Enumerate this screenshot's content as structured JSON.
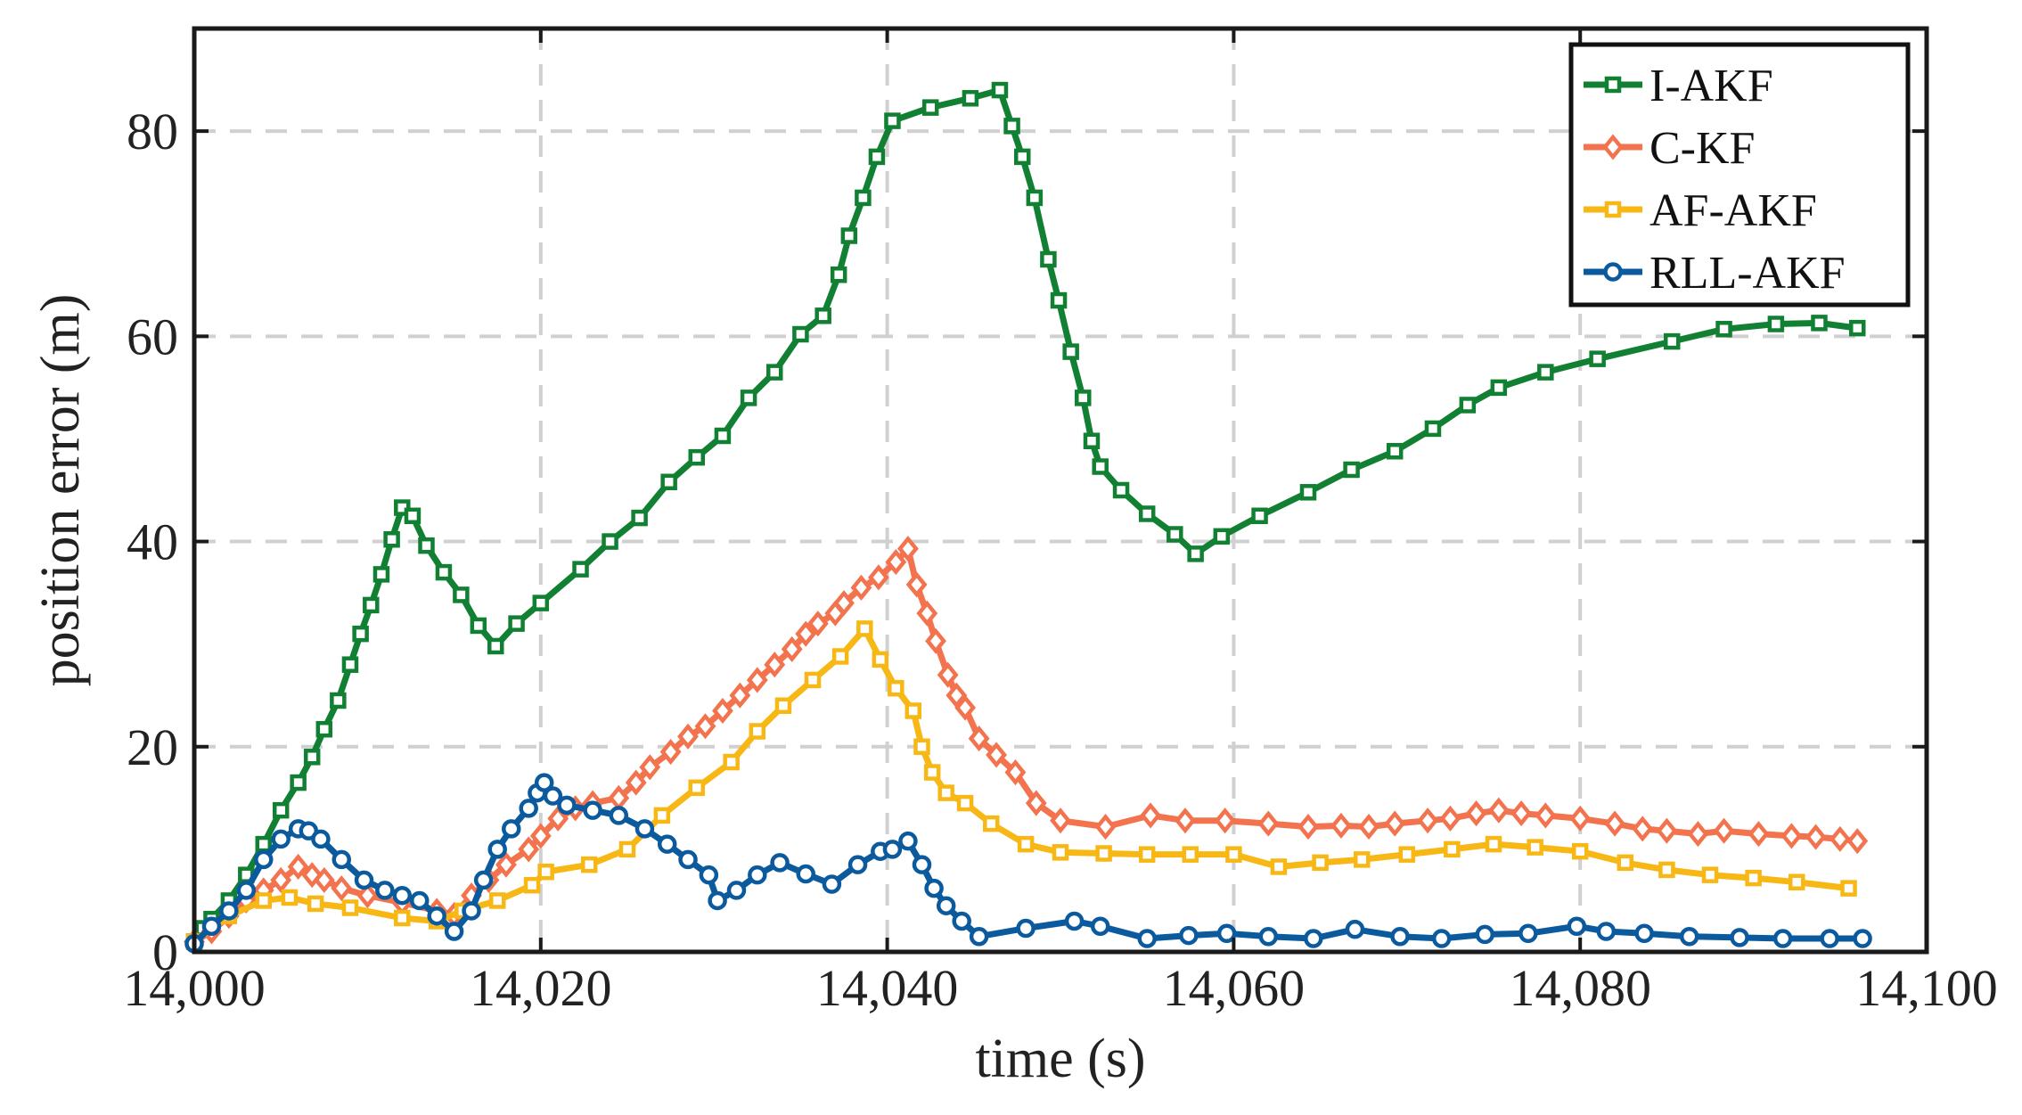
{
  "chart_data": {
    "type": "line",
    "xlabel": "time (s)",
    "ylabel": "position error (m)",
    "xlim": [
      14000,
      14100
    ],
    "ylim": [
      0,
      90
    ],
    "xticks": [
      14000,
      14020,
      14040,
      14060,
      14080,
      14100
    ],
    "xtick_labels": [
      "14,000",
      "14,020",
      "14,040",
      "14,060",
      "14,080",
      "14,100"
    ],
    "yticks": [
      0,
      20,
      40,
      60,
      80
    ],
    "ytick_labels": [
      "0",
      "20",
      "40",
      "60",
      "80"
    ],
    "grid": true,
    "legend_position": "top-right",
    "series": [
      {
        "name": "I-AKF",
        "color": "#118033",
        "marker": "square",
        "points": [
          [
            14000,
            1
          ],
          [
            14000.5,
            2.3
          ],
          [
            14001,
            3.2
          ],
          [
            14002,
            5
          ],
          [
            14003,
            7.5
          ],
          [
            14004,
            10.5
          ],
          [
            14005,
            13.8
          ],
          [
            14006,
            16.5
          ],
          [
            14006.8,
            19
          ],
          [
            14007.5,
            21.7
          ],
          [
            14008.3,
            24.5
          ],
          [
            14009,
            28
          ],
          [
            14009.6,
            31
          ],
          [
            14010.2,
            33.8
          ],
          [
            14010.8,
            36.8
          ],
          [
            14011.4,
            40.2
          ],
          [
            14012,
            43.3
          ],
          [
            14012.6,
            42.5
          ],
          [
            14013.4,
            39.6
          ],
          [
            14014.4,
            37
          ],
          [
            14015.4,
            34.8
          ],
          [
            14016.4,
            31.8
          ],
          [
            14017.4,
            29.8
          ],
          [
            14018.6,
            32
          ],
          [
            14020,
            34
          ],
          [
            14022.3,
            37.3
          ],
          [
            14024,
            40
          ],
          [
            14025.7,
            42.3
          ],
          [
            14027.4,
            45.8
          ],
          [
            14029,
            48.2
          ],
          [
            14030.5,
            50.3
          ],
          [
            14032,
            54
          ],
          [
            14033.5,
            56.5
          ],
          [
            14035,
            60.2
          ],
          [
            14036.3,
            62
          ],
          [
            14037.2,
            66
          ],
          [
            14037.8,
            69.8
          ],
          [
            14038.6,
            73.5
          ],
          [
            14039.4,
            77.5
          ],
          [
            14040.3,
            81
          ],
          [
            14042.5,
            82.3
          ],
          [
            14044.8,
            83.2
          ],
          [
            14046.5,
            84
          ],
          [
            14047.2,
            80.5
          ],
          [
            14047.8,
            77.5
          ],
          [
            14048.5,
            73.5
          ],
          [
            14049.3,
            67.5
          ],
          [
            14049.9,
            63.5
          ],
          [
            14050.6,
            58.5
          ],
          [
            14051.3,
            54
          ],
          [
            14051.8,
            49.8
          ],
          [
            14052.3,
            47.3
          ],
          [
            14053.5,
            45
          ],
          [
            14055,
            42.7
          ],
          [
            14056.6,
            40.7
          ],
          [
            14057.8,
            38.8
          ],
          [
            14059.3,
            40.5
          ],
          [
            14061.5,
            42.5
          ],
          [
            14064.3,
            44.8
          ],
          [
            14066.8,
            47
          ],
          [
            14069.3,
            48.8
          ],
          [
            14071.5,
            51
          ],
          [
            14073.5,
            53.3
          ],
          [
            14075.3,
            55
          ],
          [
            14078,
            56.5
          ],
          [
            14081,
            57.8
          ],
          [
            14085.3,
            59.5
          ],
          [
            14088.3,
            60.7
          ],
          [
            14091.3,
            61.2
          ],
          [
            14093.8,
            61.3
          ],
          [
            14096,
            60.8
          ]
        ]
      },
      {
        "name": "C-KF",
        "color": "#F2734E",
        "marker": "diamond",
        "points": [
          [
            14000,
            1
          ],
          [
            14001,
            2
          ],
          [
            14002,
            3.5
          ],
          [
            14003,
            5
          ],
          [
            14004,
            6
          ],
          [
            14005,
            7
          ],
          [
            14006,
            8.3
          ],
          [
            14006.8,
            7.5
          ],
          [
            14007.5,
            7
          ],
          [
            14008.5,
            6.2
          ],
          [
            14010,
            5.5
          ],
          [
            14012,
            4.8
          ],
          [
            14014,
            4
          ],
          [
            14015,
            3.6
          ],
          [
            14016,
            5.5
          ],
          [
            14017,
            7
          ],
          [
            14018,
            8.5
          ],
          [
            14019.3,
            10
          ],
          [
            14020,
            11.3
          ],
          [
            14021,
            13
          ],
          [
            14022,
            14
          ],
          [
            14023,
            14.5
          ],
          [
            14024.5,
            15
          ],
          [
            14025.5,
            16.5
          ],
          [
            14026.3,
            18
          ],
          [
            14027.5,
            19.5
          ],
          [
            14028.5,
            21
          ],
          [
            14029.5,
            22
          ],
          [
            14030.5,
            23.5
          ],
          [
            14031.5,
            25
          ],
          [
            14032.5,
            26.5
          ],
          [
            14033.5,
            28
          ],
          [
            14034.5,
            29.5
          ],
          [
            14035.3,
            31
          ],
          [
            14036,
            32
          ],
          [
            14037,
            33
          ],
          [
            14037.5,
            34
          ],
          [
            14038.5,
            35.5
          ],
          [
            14039.5,
            36.5
          ],
          [
            14040.5,
            38
          ],
          [
            14041.2,
            39.3
          ],
          [
            14041.7,
            35.8
          ],
          [
            14042.3,
            33
          ],
          [
            14042.8,
            30.3
          ],
          [
            14043.5,
            27
          ],
          [
            14044,
            25
          ],
          [
            14044.5,
            23.8
          ],
          [
            14045.3,
            20.8
          ],
          [
            14046.3,
            19.2
          ],
          [
            14047.4,
            17.5
          ],
          [
            14048.6,
            14.5
          ],
          [
            14050,
            12.8
          ],
          [
            14052.6,
            12.2
          ],
          [
            14055.2,
            13.3
          ],
          [
            14057.2,
            12.8
          ],
          [
            14059.5,
            12.8
          ],
          [
            14062,
            12.5
          ],
          [
            14064.3,
            12.2
          ],
          [
            14066.2,
            12.3
          ],
          [
            14067.8,
            12.2
          ],
          [
            14069.3,
            12.5
          ],
          [
            14071.2,
            12.8
          ],
          [
            14072.5,
            13
          ],
          [
            14074,
            13.5
          ],
          [
            14075.3,
            13.8
          ],
          [
            14076.6,
            13.5
          ],
          [
            14078,
            13.3
          ],
          [
            14080,
            13
          ],
          [
            14082,
            12.5
          ],
          [
            14083.6,
            12
          ],
          [
            14085,
            11.8
          ],
          [
            14086.8,
            11.5
          ],
          [
            14088.3,
            11.8
          ],
          [
            14090.3,
            11.5
          ],
          [
            14092.2,
            11.3
          ],
          [
            14093.6,
            11.2
          ],
          [
            14095,
            11
          ],
          [
            14096,
            10.8
          ]
        ]
      },
      {
        "name": "AF-AKF",
        "color": "#F7B714",
        "marker": "square",
        "points": [
          [
            14000,
            1
          ],
          [
            14002,
            3.5
          ],
          [
            14004,
            5
          ],
          [
            14005.5,
            5.3
          ],
          [
            14007,
            4.7
          ],
          [
            14009,
            4.3
          ],
          [
            14012,
            3.3
          ],
          [
            14014,
            3
          ],
          [
            14015.5,
            4
          ],
          [
            14017.5,
            5
          ],
          [
            14019.5,
            6.5
          ],
          [
            14020.3,
            7.8
          ],
          [
            14022.8,
            8.5
          ],
          [
            14025,
            10
          ],
          [
            14027,
            13.3
          ],
          [
            14029,
            16
          ],
          [
            14031,
            18.5
          ],
          [
            14032.5,
            21.5
          ],
          [
            14034,
            24
          ],
          [
            14035.7,
            26.5
          ],
          [
            14037.3,
            28.8
          ],
          [
            14038.7,
            31.5
          ],
          [
            14039.6,
            28.5
          ],
          [
            14040.5,
            25.7
          ],
          [
            14041.5,
            23.5
          ],
          [
            14042,
            20
          ],
          [
            14042.6,
            17.5
          ],
          [
            14043.4,
            15.5
          ],
          [
            14044.5,
            14.5
          ],
          [
            14046,
            12.5
          ],
          [
            14048,
            10.5
          ],
          [
            14050,
            9.7
          ],
          [
            14052.5,
            9.6
          ],
          [
            14055,
            9.5
          ],
          [
            14057.5,
            9.5
          ],
          [
            14060,
            9.5
          ],
          [
            14062.6,
            8.3
          ],
          [
            14065,
            8.7
          ],
          [
            14067.4,
            9
          ],
          [
            14070,
            9.5
          ],
          [
            14072.6,
            10
          ],
          [
            14075,
            10.5
          ],
          [
            14077.4,
            10.2
          ],
          [
            14080,
            9.8
          ],
          [
            14082.6,
            8.7
          ],
          [
            14085,
            8
          ],
          [
            14087.5,
            7.5
          ],
          [
            14090,
            7.2
          ],
          [
            14092.5,
            6.8
          ],
          [
            14095.5,
            6.2
          ]
        ]
      },
      {
        "name": "RLL-AKF",
        "color": "#0B5A9E",
        "marker": "circle",
        "points": [
          [
            14000,
            0.8
          ],
          [
            14001,
            2.5
          ],
          [
            14002,
            4
          ],
          [
            14003,
            6
          ],
          [
            14004,
            9
          ],
          [
            14005,
            11
          ],
          [
            14006,
            12
          ],
          [
            14006.6,
            11.8
          ],
          [
            14007.3,
            11
          ],
          [
            14008.5,
            9
          ],
          [
            14009.8,
            7
          ],
          [
            14011,
            6
          ],
          [
            14012,
            5.5
          ],
          [
            14013,
            5
          ],
          [
            14014,
            3.5
          ],
          [
            14015,
            2
          ],
          [
            14016,
            4
          ],
          [
            14016.7,
            7
          ],
          [
            14017.5,
            10
          ],
          [
            14018.3,
            12
          ],
          [
            14019.3,
            14
          ],
          [
            14019.8,
            15.5
          ],
          [
            14020.2,
            16.5
          ],
          [
            14020.7,
            15.2
          ],
          [
            14021.5,
            14.3
          ],
          [
            14023,
            13.8
          ],
          [
            14024.5,
            13.3
          ],
          [
            14026,
            12
          ],
          [
            14027.3,
            10.5
          ],
          [
            14028.5,
            9
          ],
          [
            14029.7,
            7.5
          ],
          [
            14030.2,
            5
          ],
          [
            14031.3,
            6
          ],
          [
            14032.5,
            7.5
          ],
          [
            14033.8,
            8.7
          ],
          [
            14035.3,
            7.6
          ],
          [
            14036.8,
            6.6
          ],
          [
            14038.3,
            8.5
          ],
          [
            14039.6,
            9.8
          ],
          [
            14040.3,
            10
          ],
          [
            14041.2,
            10.8
          ],
          [
            14042,
            8.5
          ],
          [
            14042.7,
            6.2
          ],
          [
            14043.4,
            4.5
          ],
          [
            14044.3,
            3
          ],
          [
            14045.3,
            1.5
          ],
          [
            14048,
            2.3
          ],
          [
            14050.8,
            3
          ],
          [
            14052.3,
            2.5
          ],
          [
            14055,
            1.3
          ],
          [
            14057.4,
            1.6
          ],
          [
            14059.6,
            1.8
          ],
          [
            14062,
            1.5
          ],
          [
            14064.6,
            1.3
          ],
          [
            14067,
            2.2
          ],
          [
            14069.6,
            1.5
          ],
          [
            14072,
            1.3
          ],
          [
            14074.5,
            1.7
          ],
          [
            14077,
            1.8
          ],
          [
            14079.8,
            2.5
          ],
          [
            14081.5,
            2
          ],
          [
            14083.7,
            1.8
          ],
          [
            14086.3,
            1.5
          ],
          [
            14089.2,
            1.4
          ],
          [
            14091.7,
            1.3
          ],
          [
            14094.4,
            1.3
          ],
          [
            14096.3,
            1.3
          ]
        ]
      }
    ]
  }
}
